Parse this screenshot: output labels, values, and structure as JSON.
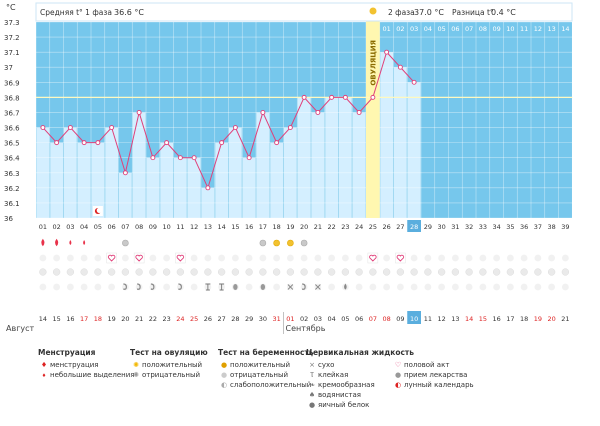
{
  "header": {
    "unit": "°C",
    "phase1_label": "Средняя t° 1 фаза",
    "phase1_value": "36.6 °C",
    "phase2_label": "2 фаза",
    "phase2_value": "37.0 °C",
    "diff_label": "Разница t°",
    "diff_value": "0.4 °C",
    "ovulation_label": "ОВУЛЯЦИЯ"
  },
  "chart_data": {
    "type": "line",
    "ylim": [
      36,
      37.3
    ],
    "yticks": [
      "36",
      "36.1",
      "36.2",
      "36.3",
      "36.4",
      "36.5",
      "36.6",
      "36.7",
      "36.8",
      "36.9",
      "37",
      "37.1",
      "37.2",
      "37.3"
    ],
    "cycle_days": [
      "01",
      "02",
      "03",
      "04",
      "05",
      "06",
      "07",
      "08",
      "09",
      "10",
      "11",
      "12",
      "13",
      "14",
      "15",
      "16",
      "17",
      "18",
      "19",
      "20",
      "21",
      "22",
      "23",
      "24",
      "25",
      "26",
      "27",
      "28",
      "29",
      "30",
      "31",
      "32",
      "33",
      "34",
      "35",
      "36",
      "37",
      "38",
      "39"
    ],
    "phase2_days": [
      "01",
      "02",
      "03",
      "04",
      "05",
      "06",
      "07",
      "08",
      "09",
      "10",
      "11",
      "12",
      "13",
      "14"
    ],
    "temperatures": [
      36.6,
      36.5,
      36.6,
      36.5,
      36.5,
      36.6,
      36.3,
      36.7,
      36.4,
      36.5,
      36.4,
      36.4,
      36.2,
      36.5,
      36.6,
      36.4,
      36.7,
      36.5,
      36.6,
      36.8,
      36.7,
      36.8,
      36.8,
      36.7,
      36.8,
      37.1,
      37.0,
      36.9
    ],
    "coverline": 36.8,
    "ovulation_day": 25,
    "current_day": 28,
    "calendar_dates": [
      "14",
      "15",
      "16",
      "17",
      "18",
      "19",
      "20",
      "21",
      "22",
      "23",
      "24",
      "25",
      "26",
      "27",
      "28",
      "29",
      "30",
      "31",
      "01",
      "02",
      "03",
      "04",
      "05",
      "06",
      "07",
      "08",
      "09",
      "10",
      "11",
      "12",
      "13",
      "14",
      "15",
      "16",
      "17",
      "18",
      "19",
      "20",
      "21"
    ],
    "red_dates_idx": [
      3,
      4,
      10,
      11,
      17,
      18,
      24,
      25,
      31,
      32,
      36,
      37
    ],
    "current_date_idx": 27,
    "months": [
      "Август",
      "Сентябрь"
    ],
    "month_change_idx": 18,
    "rows": {
      "menstruation": {
        "1": "heavy",
        "2": "heavy",
        "3": "light",
        "4": "light"
      },
      "ovulation_test": {
        "7": "negative",
        "17": "negative",
        "18": "positive",
        "19": "positive",
        "20": "negative"
      },
      "intercourse": [
        6,
        8,
        11,
        25,
        27
      ],
      "moon": [
        5
      ],
      "mucus": {
        "7": "creamy",
        "8": "creamy",
        "9": "creamy",
        "11": "creamy",
        "13": "sticky",
        "14": "sticky",
        "15": "egg",
        "17": "egg",
        "19": "dry",
        "20": "creamy",
        "21": "dry",
        "23": "watery"
      }
    }
  },
  "legend": {
    "menstruation": {
      "title": "Менструация",
      "items": [
        "менструация",
        "небольшие выделения"
      ]
    },
    "ovulation": {
      "title": "Тест на овуляцию",
      "items": [
        "положительный",
        "отрицательный"
      ]
    },
    "pregnancy": {
      "title": "Тест на беременность",
      "items": [
        "положительный",
        "отрицательный",
        "слабоположительный"
      ]
    },
    "mucus": {
      "title": "Цервикальная жидкость",
      "items_left": [
        "сухо",
        "клейкая",
        "кремообразная",
        "водянистая",
        "яичный белок"
      ],
      "items_right": [
        "половой акт",
        "прием лекарства",
        "лунный календарь"
      ]
    }
  },
  "colors": {
    "bg": "#76c7ec",
    "bar": "#d4efff",
    "line": "#e0407a",
    "ovulation": "#fff7b0",
    "current": "#5aaede",
    "red": "#d22"
  }
}
